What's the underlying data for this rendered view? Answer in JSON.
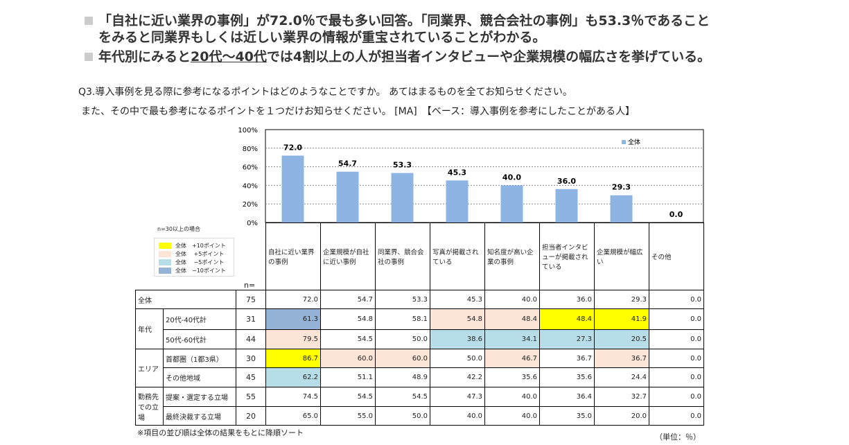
{
  "summary": [
    "「自社に近い業界の事例」が72.0％で最も多い回答。「同業界、競合会社の事例」も53.3％であること",
    "をみると同業界もしくは近しい業界の情報が重宝されていることがわかる。",
    "年代別にみると",
    "20代～40代",
    "では4割以上の人が担当者インタビューや企業規模の幅広さを挙げている。"
  ],
  "question": [
    "Q3.導入事例を見る際に参考になるポイントはどのようなことですか。 あてはまるものを全てお知らせください。",
    "また、その中で最も参考になるポイントを１つだけお知らせください。 [MA]　【ベース：導入事例を参考にしたことがある人】"
  ],
  "legend_note": "n=30以上の場合",
  "legend": [
    {
      "label": "全体　+10ポイント",
      "color": "#ffff00"
    },
    {
      "label": "全体　 +5ポイント",
      "color": "#fce4d6"
    },
    {
      "label": "全体　 −5ポイント",
      "color": "#b7dee8"
    },
    {
      "label": "全体　−10ポイント",
      "color": "#95b3d7"
    }
  ],
  "n_label": "n=",
  "footnote": "※項目の並び順は全体の結果をもとに降順ソート",
  "unit": "（単位：％）",
  "chart_data": {
    "type": "bar",
    "series_name": "全体",
    "bar_color": "#8db4e2",
    "ylim": [
      0,
      100
    ],
    "yticks": [
      "0%",
      "20%",
      "40%",
      "60%",
      "80%",
      "100%"
    ],
    "categories": [
      "自社に近い業界の事例",
      "企業規模が自社に近い事例",
      "同業界、競合会社の事例",
      "写真が掲載されている",
      "知名度が高い企業の事例",
      "担当者インタビューが掲載されている",
      "企業規模が幅広い",
      "その他"
    ],
    "values": [
      72.0,
      54.7,
      53.3,
      45.3,
      40.0,
      36.0,
      29.3,
      0.0
    ],
    "table": [
      {
        "group": "全体",
        "label": "",
        "n": "75",
        "values": [
          "72.0",
          "54.7",
          "53.3",
          "45.3",
          "40.0",
          "36.0",
          "29.3",
          "0.0"
        ],
        "hl": [
          0,
          0,
          0,
          0,
          0,
          0,
          0,
          0
        ]
      },
      {
        "group": "年代",
        "label": "20代-40代計",
        "n": "31",
        "values": [
          "61.3",
          "54.8",
          "58.1",
          "54.8",
          "48.4",
          "48.4",
          "41.9",
          "0.0"
        ],
        "hl": [
          4,
          0,
          0,
          2,
          2,
          1,
          1,
          0
        ]
      },
      {
        "group": "",
        "label": "50代-60代計",
        "n": "44",
        "values": [
          "79.5",
          "54.5",
          "50.0",
          "38.6",
          "34.1",
          "27.3",
          "20.5",
          "0.0"
        ],
        "hl": [
          2,
          0,
          0,
          3,
          3,
          3,
          3,
          0
        ]
      },
      {
        "group": "エリア",
        "label": "首都圏（1都3県）",
        "n": "30",
        "values": [
          "86.7",
          "60.0",
          "60.0",
          "50.0",
          "46.7",
          "36.7",
          "36.7",
          "0.0"
        ],
        "hl": [
          1,
          2,
          2,
          0,
          2,
          0,
          2,
          0
        ]
      },
      {
        "group": "",
        "label": "その他地域",
        "n": "45",
        "values": [
          "62.2",
          "51.1",
          "48.9",
          "42.2",
          "35.6",
          "35.6",
          "24.4",
          "0.0"
        ],
        "hl": [
          3,
          0,
          0,
          0,
          0,
          0,
          0,
          0
        ]
      },
      {
        "group": "勤務先での立場",
        "label": "提案・選定する立場",
        "n": "55",
        "values": [
          "74.5",
          "54.5",
          "54.5",
          "47.3",
          "40.0",
          "36.4",
          "32.7",
          "0.0"
        ],
        "hl": [
          0,
          0,
          0,
          0,
          0,
          0,
          0,
          0
        ]
      },
      {
        "group": "",
        "label": "最終決裁する立場",
        "n": "20",
        "values": [
          "65.0",
          "55.0",
          "50.0",
          "40.0",
          "40.0",
          "35.0",
          "20.0",
          "0.0"
        ],
        "hl": [
          0,
          0,
          0,
          0,
          0,
          0,
          0,
          0
        ]
      }
    ]
  }
}
